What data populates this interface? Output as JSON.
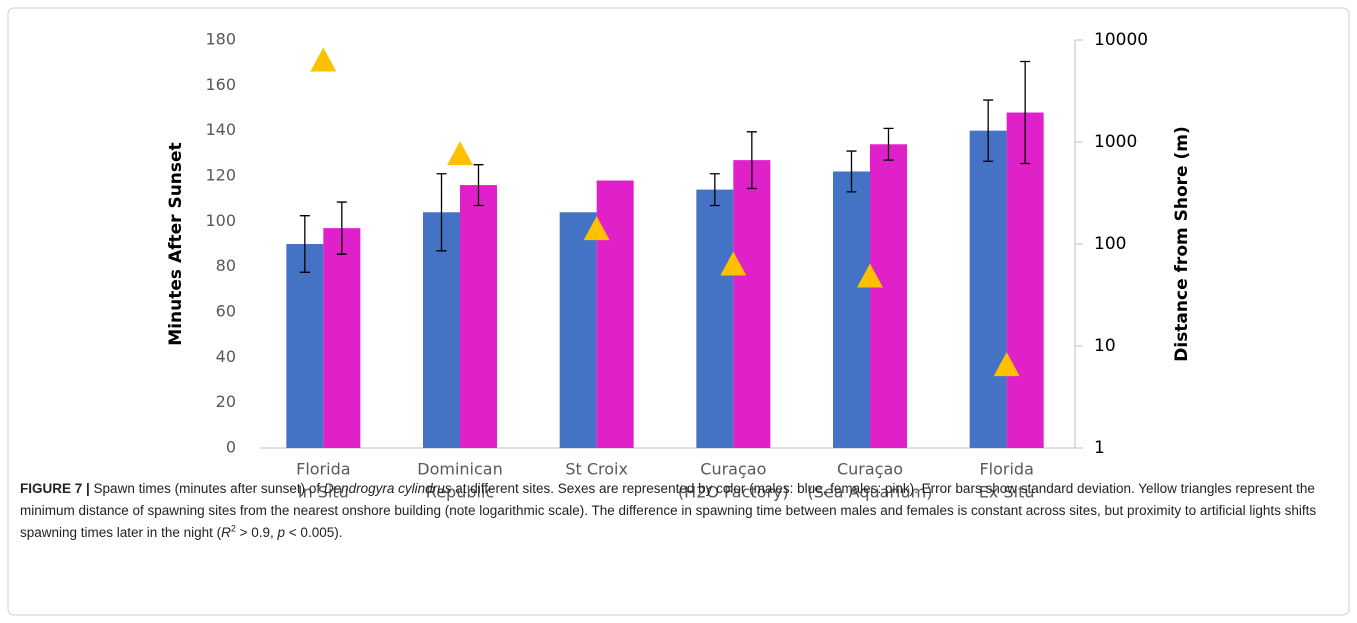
{
  "chart_data": {
    "type": "bar",
    "ylabel": "Minutes After Sunset",
    "y2label": "Distance from Shore (m)",
    "categories": [
      [
        "Florida",
        "In Situ"
      ],
      [
        "Dominican",
        "Republic"
      ],
      [
        "St Croix"
      ],
      [
        "Curaçao",
        "(H2O Factory)"
      ],
      [
        "Curaçao",
        "(Sea Aquarium)"
      ],
      [
        "Florida",
        "Ex Situ"
      ]
    ],
    "series": [
      {
        "color": "#4472c4",
        "values": [
          90,
          104,
          104,
          114,
          122,
          140
        ],
        "errors": [
          12.5,
          17,
          null,
          7,
          9,
          13.5
        ]
      },
      {
        "color": "#e020c8",
        "values": [
          97,
          116,
          118,
          127,
          134,
          148
        ],
        "errors": [
          11.5,
          9,
          null,
          12.5,
          7,
          22.5
        ]
      },
      {
        "color": "#ffc000",
        "values": [
          6300,
          760,
          140,
          63,
          48,
          6.5
        ],
        "axis": "y2",
        "marker": "triangle"
      }
    ],
    "ylim": [
      0,
      180
    ],
    "yticks": [
      0,
      20,
      40,
      60,
      80,
      100,
      120,
      140,
      160,
      180
    ],
    "y2lim": [
      1,
      10000
    ],
    "y2ticks": [
      1,
      10,
      100,
      1000,
      10000
    ],
    "y2log": true,
    "grid": false,
    "caption": [
      {
        "text": "FIGURE 7 | ",
        "style": "bold"
      },
      {
        "text": "Spawn times (minutes after sunset) of "
      },
      {
        "text": "Dendrogyra cylindrus",
        "style": "italic"
      },
      {
        "text": " at different sites. Sexes are represented by color (males: blue, females: pink). Error bars show standard deviation. Yellow triangles represent the minimum distance of spawning sites from the nearest onshore building (note logarithmic scale). The difference in spawning time between males and females is constant across sites, but proximity to artificial lights shifts spawning times later in the night ("
      },
      {
        "text": "R",
        "style": "italic"
      },
      {
        "text": "2",
        "style": "sup"
      },
      {
        "text": " > 0.9, "
      },
      {
        "text": "p",
        "style": "italic"
      },
      {
        "text": " < 0.005)."
      }
    ]
  }
}
